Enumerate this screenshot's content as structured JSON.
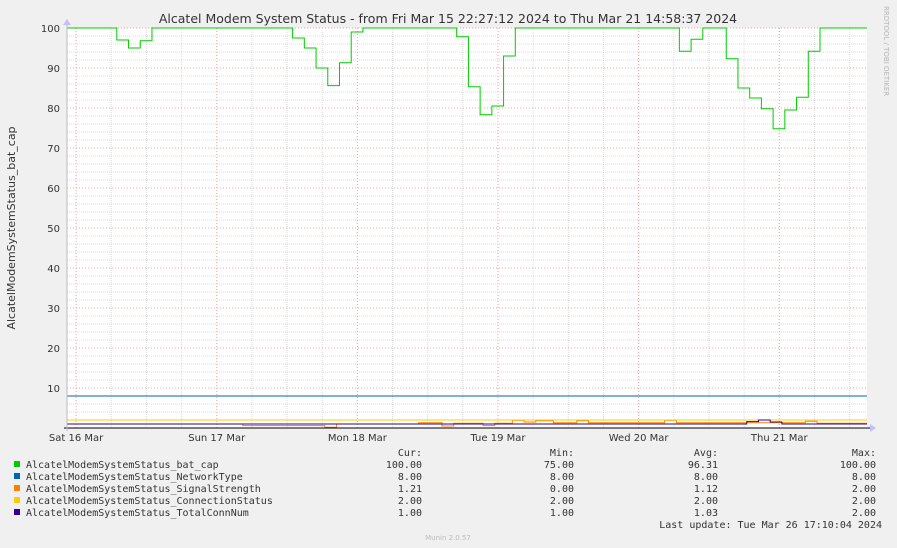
{
  "chart_data": {
    "type": "line",
    "title": "Alcatel Modem System Status - from Fri Mar 15 22:27:12 2024 to Thu Mar 21 14:58:37 2024",
    "ylabel": "AlcatelModemSystemStatus_bat_cap",
    "watermark": "RRDTOOL / TOBI OETIKER",
    "ylim": [
      0,
      100
    ],
    "yticks": [
      10,
      20,
      30,
      40,
      50,
      60,
      70,
      80,
      90,
      100
    ],
    "xlim": [
      0,
      136.52
    ],
    "xticks": [
      {
        "x": 1.55,
        "label": "Sat 16 Mar"
      },
      {
        "x": 25.55,
        "label": "Sun 17 Mar"
      },
      {
        "x": 49.55,
        "label": "Mon 18 Mar"
      },
      {
        "x": 73.55,
        "label": "Tue 19 Mar"
      },
      {
        "x": 97.55,
        "label": "Wed 20 Mar"
      },
      {
        "x": 121.55,
        "label": "Thu 21 Mar"
      }
    ],
    "grid": true,
    "legend_placement": "bottom",
    "stats_headers": [
      "Cur:",
      "Min:",
      "Avg:",
      "Max:"
    ],
    "series": [
      {
        "name": "AlcatelModemSystemStatus_bat_cap",
        "color": "#00cc00",
        "stats": [
          "100.00",
          "75.00",
          "96.31",
          "100.00"
        ],
        "points": [
          [
            0,
            100
          ],
          [
            8.5,
            100
          ],
          [
            8.5,
            97
          ],
          [
            10.5,
            97
          ],
          [
            10.5,
            95
          ],
          [
            12.5,
            95
          ],
          [
            12.5,
            96.8
          ],
          [
            14.5,
            96.8
          ],
          [
            14.5,
            100
          ],
          [
            38.5,
            100
          ],
          [
            38.5,
            97.5
          ],
          [
            40.5,
            97.5
          ],
          [
            40.5,
            95
          ],
          [
            42.5,
            95
          ],
          [
            42.5,
            90
          ],
          [
            44.5,
            90
          ],
          [
            44.5,
            85.6
          ],
          [
            46.5,
            85.6
          ],
          [
            46.5,
            91.3
          ],
          [
            48.5,
            91.3
          ],
          [
            48.5,
            99
          ],
          [
            50.5,
            99
          ],
          [
            50.5,
            100
          ],
          [
            66.5,
            100
          ],
          [
            66.5,
            97.8
          ],
          [
            68.5,
            97.8
          ],
          [
            68.5,
            85.3
          ],
          [
            70.5,
            85.3
          ],
          [
            70.5,
            78.3
          ],
          [
            72.5,
            78.3
          ],
          [
            72.5,
            80.5
          ],
          [
            74.5,
            80.5
          ],
          [
            74.5,
            93
          ],
          [
            76.5,
            93
          ],
          [
            76.5,
            100
          ],
          [
            104.5,
            100
          ],
          [
            104.5,
            94.2
          ],
          [
            106.5,
            94.2
          ],
          [
            106.5,
            97.2
          ],
          [
            108.5,
            97.2
          ],
          [
            108.5,
            100
          ],
          [
            112.5,
            100
          ],
          [
            112.5,
            92.3
          ],
          [
            114.5,
            92.3
          ],
          [
            114.5,
            85
          ],
          [
            116.5,
            85
          ],
          [
            116.5,
            82.5
          ],
          [
            118.5,
            82.5
          ],
          [
            118.5,
            79.8
          ],
          [
            120.5,
            79.8
          ],
          [
            120.5,
            74.8
          ],
          [
            122.5,
            74.8
          ],
          [
            122.5,
            79.5
          ],
          [
            124.5,
            79.5
          ],
          [
            124.5,
            82.7
          ],
          [
            126.5,
            82.7
          ],
          [
            126.5,
            94.2
          ],
          [
            128.5,
            94.2
          ],
          [
            128.5,
            100
          ],
          [
            136.52,
            100
          ]
        ]
      },
      {
        "name": "AlcatelModemSystemStatus_NetworkType",
        "color": "#0066b3",
        "stats": [
          "8.00",
          "8.00",
          "8.00",
          "8.00"
        ],
        "points": [
          [
            0,
            8
          ],
          [
            136.52,
            8
          ]
        ]
      },
      {
        "name": "AlcatelModemSystemStatus_SignalStrength",
        "color": "#ff8000",
        "stats": [
          "1.21",
          "0.00",
          "1.12",
          "2.00"
        ],
        "points": [
          [
            0,
            1
          ],
          [
            30,
            1
          ],
          [
            30,
            0.6
          ],
          [
            44,
            0.6
          ],
          [
            44,
            0.2
          ],
          [
            46,
            0.2
          ],
          [
            46,
            1
          ],
          [
            60,
            1
          ],
          [
            60,
            1.3
          ],
          [
            64,
            1.3
          ],
          [
            64,
            0.5
          ],
          [
            66,
            0.5
          ],
          [
            66,
            1.2
          ],
          [
            71,
            1.2
          ],
          [
            71,
            0.6
          ],
          [
            73,
            0.6
          ],
          [
            73,
            1.2
          ],
          [
            76,
            1.2
          ],
          [
            76,
            1.9
          ],
          [
            78,
            1.9
          ],
          [
            78,
            1.5
          ],
          [
            80,
            1.5
          ],
          [
            80,
            1.8
          ],
          [
            83,
            1.8
          ],
          [
            83,
            1.3
          ],
          [
            87,
            1.3
          ],
          [
            87,
            1.8
          ],
          [
            89,
            1.8
          ],
          [
            89,
            1.3
          ],
          [
            102,
            1.3
          ],
          [
            102,
            1.9
          ],
          [
            104,
            1.9
          ],
          [
            104,
            1.3
          ],
          [
            126,
            1.3
          ],
          [
            126,
            1.7
          ],
          [
            128,
            1.7
          ],
          [
            128,
            1.2
          ],
          [
            136.52,
            1.2
          ]
        ]
      },
      {
        "name": "AlcatelModemSystemStatus_ConnectionStatus",
        "color": "#ffcc00",
        "stats": [
          "2.00",
          "2.00",
          "2.00",
          "2.00"
        ],
        "points": [
          [
            0,
            2
          ],
          [
            136.52,
            2
          ]
        ]
      },
      {
        "name": "AlcatelModemSystemStatus_TotalConnNum",
        "color": "#330099",
        "stats": [
          "1.00",
          "1.00",
          "1.03",
          "2.00"
        ],
        "points": [
          [
            0,
            1
          ],
          [
            116,
            1
          ],
          [
            116,
            1.6
          ],
          [
            118,
            1.6
          ],
          [
            118,
            2
          ],
          [
            120,
            2
          ],
          [
            120,
            1.5
          ],
          [
            122,
            1.5
          ],
          [
            122,
            1
          ],
          [
            136.52,
            1
          ]
        ]
      }
    ]
  },
  "last_update": "Last update: Tue Mar 26 17:10:04 2024",
  "footer": "Munin 2.0.57"
}
